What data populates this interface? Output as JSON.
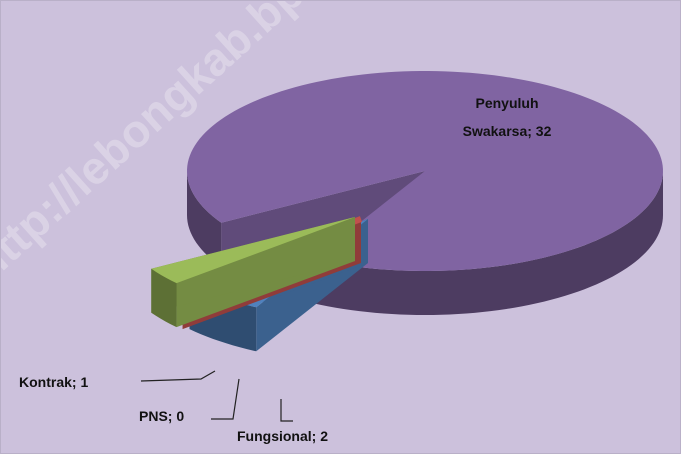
{
  "chart_data": {
    "type": "pie3d",
    "categories": [
      "Fungsional",
      "PNS",
      "Kontrak",
      "Penyuluh Swakarsa"
    ],
    "values": [
      2,
      0,
      1,
      32
    ],
    "value_labels": [
      "Fungsional; 2",
      "PNS; 0",
      "Kontrak; 1",
      "Penyuluh Swakarsa; 32"
    ],
    "colors": [
      "#4f81bd",
      "#c0504d",
      "#9bbb59",
      "#8064a2"
    ],
    "watermark": "http://lebongkab.bps.go.id"
  }
}
